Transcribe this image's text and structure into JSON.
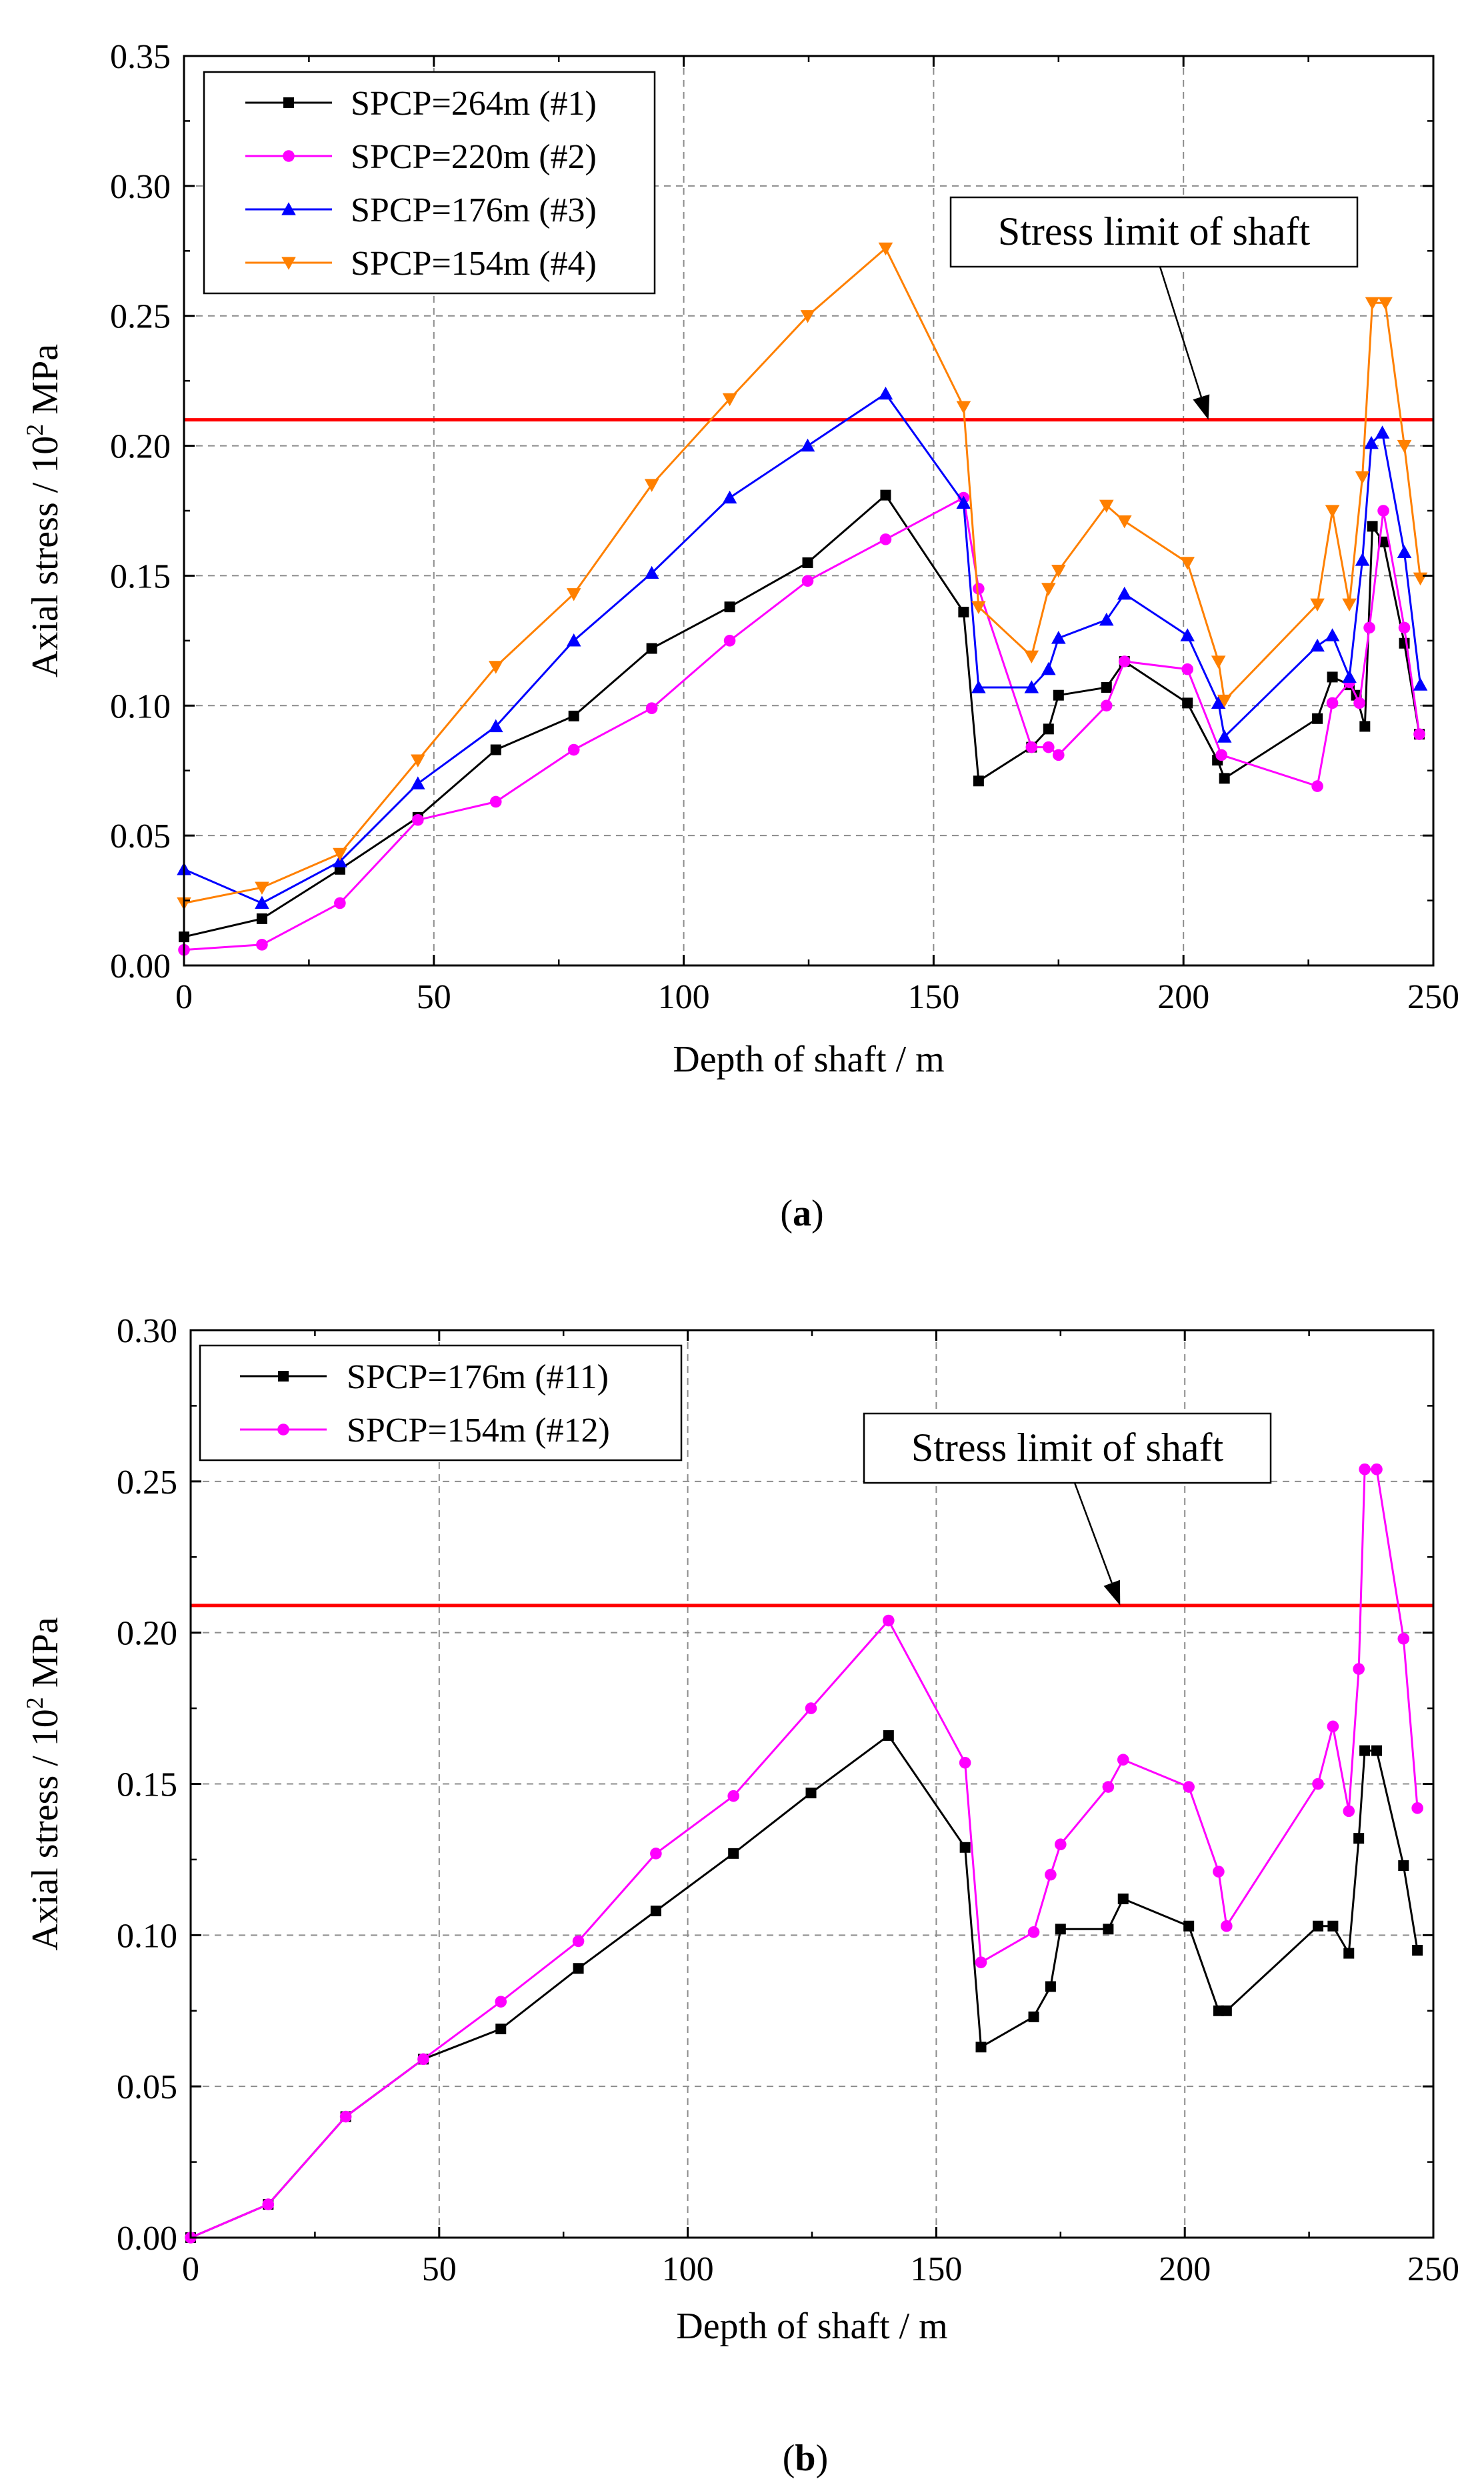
{
  "chart_data": [
    {
      "type": "line",
      "id": "a",
      "caption": "(a)",
      "caption_parts": [
        "(",
        "a",
        ")"
      ],
      "xlabel": "Depth of shaft / m",
      "ylabel_parts": [
        "Axial stress / 10",
        "2",
        " MPa"
      ],
      "xlim": [
        0,
        250
      ],
      "ylim": [
        0,
        0.35
      ],
      "xticks": [
        0,
        50,
        100,
        150,
        200,
        250
      ],
      "yticks": [
        0.0,
        0.05,
        0.1,
        0.15,
        0.2,
        0.25,
        0.3,
        0.35
      ],
      "ytick_labels": [
        "0.00",
        "0.05",
        "0.10",
        "0.15",
        "0.20",
        "0.25",
        "0.30",
        "0.35"
      ],
      "grid": true,
      "legend_position": "top-left",
      "limit_line": {
        "value": 0.21,
        "color": "#ff0000"
      },
      "annotation": {
        "text": "Stress limit of shaft",
        "points_to": [
          205,
          0.21
        ]
      },
      "series": [
        {
          "name": "SPCP=264m (#1)",
          "color": "#000000",
          "marker": "square",
          "x": [
            0,
            15.6,
            31.2,
            46.8,
            62.4,
            78,
            93.6,
            109.2,
            124.8,
            140.4,
            156,
            159,
            169.6,
            173,
            175,
            184.6,
            188.2,
            200.8,
            206.8,
            208.2,
            226.8,
            229.8,
            233.2,
            234.6,
            236.3,
            237.8,
            240,
            244.2,
            247.2
          ],
          "y": [
            0.011,
            0.018,
            0.037,
            0.057,
            0.083,
            0.096,
            0.122,
            0.138,
            0.155,
            0.181,
            0.136,
            0.071,
            0.084,
            0.091,
            0.104,
            0.107,
            0.117,
            0.101,
            0.079,
            0.072,
            0.095,
            0.111,
            0.108,
            0.104,
            0.092,
            0.169,
            0.163,
            0.124,
            0.089
          ]
        },
        {
          "name": "SPCP=220m (#2)",
          "color": "#ff00ff",
          "marker": "circle",
          "x": [
            0,
            15.6,
            31.2,
            46.8,
            62.4,
            78,
            93.6,
            109.2,
            124.8,
            140.4,
            156,
            159,
            169.6,
            173,
            175,
            184.6,
            188.2,
            200.8,
            207.6,
            226.8,
            229.8,
            233.2,
            235.2,
            237.2,
            240,
            244.2,
            247.2
          ],
          "y": [
            0.006,
            0.008,
            0.024,
            0.056,
            0.063,
            0.083,
            0.099,
            0.125,
            0.148,
            0.164,
            0.18,
            0.145,
            0.084,
            0.084,
            0.081,
            0.1,
            0.117,
            0.114,
            0.081,
            0.069,
            0.101,
            0.109,
            0.101,
            0.13,
            0.175,
            0.13,
            0.089
          ]
        },
        {
          "name": "SPCP=176m (#3)",
          "color": "#0000ff",
          "marker": "triangle-up",
          "x": [
            0,
            15.6,
            31.2,
            46.8,
            62.4,
            78,
            93.6,
            109.2,
            124.8,
            140.4,
            156,
            159,
            169.6,
            173,
            175,
            184.6,
            188.2,
            200.8,
            207,
            208.2,
            226.8,
            229.8,
            233.2,
            235.8,
            237.6,
            239.8,
            244.2,
            247.4
          ],
          "y": [
            0.037,
            0.024,
            0.04,
            0.07,
            0.092,
            0.125,
            0.151,
            0.18,
            0.2,
            0.22,
            0.178,
            0.107,
            0.107,
            0.114,
            0.126,
            0.133,
            0.143,
            0.127,
            0.101,
            0.088,
            0.123,
            0.127,
            0.111,
            0.156,
            0.201,
            0.205,
            0.159,
            0.108
          ]
        },
        {
          "name": "SPCP=154m (#4)",
          "color": "#ff8000",
          "marker": "triangle-down",
          "x": [
            0,
            15.6,
            31.2,
            46.8,
            62.4,
            78,
            93.6,
            109.2,
            124.8,
            140.4,
            156,
            159,
            169.6,
            173,
            175,
            184.6,
            188.2,
            200.8,
            207,
            208.2,
            226.8,
            229.8,
            233.2,
            235.8,
            237.8,
            240.4,
            244.2,
            247.4
          ],
          "y": [
            0.024,
            0.03,
            0.043,
            0.079,
            0.115,
            0.143,
            0.185,
            0.218,
            0.25,
            0.276,
            0.215,
            0.138,
            0.119,
            0.145,
            0.152,
            0.177,
            0.171,
            0.155,
            0.117,
            0.102,
            0.139,
            0.175,
            0.139,
            0.188,
            0.255,
            0.255,
            0.2,
            0.149
          ]
        }
      ]
    },
    {
      "type": "line",
      "id": "b",
      "caption": "(b)",
      "caption_parts": [
        "(",
        "b",
        ")"
      ],
      "xlabel": "Depth of shaft / m",
      "ylabel_parts": [
        "Axial stress / 10",
        "2",
        " MPa"
      ],
      "xlim": [
        0,
        250
      ],
      "ylim": [
        0,
        0.3
      ],
      "xticks": [
        0,
        50,
        100,
        150,
        200,
        250
      ],
      "yticks": [
        0.0,
        0.05,
        0.1,
        0.15,
        0.2,
        0.25,
        0.3
      ],
      "ytick_labels": [
        "0.00",
        "0.05",
        "0.10",
        "0.15",
        "0.20",
        "0.25",
        "0.30"
      ],
      "grid": true,
      "legend_position": "top-left",
      "limit_line": {
        "value": 0.209,
        "color": "#ff0000"
      },
      "annotation": {
        "text": "Stress limit of shaft",
        "points_to": [
          187,
          0.209
        ]
      },
      "series": [
        {
          "name": "SPCP=176m (#11)",
          "color": "#000000",
          "marker": "square",
          "x": [
            0,
            15.6,
            31.2,
            46.8,
            62.4,
            78,
            93.6,
            109.2,
            124.8,
            140.4,
            155.8,
            159,
            169.6,
            173,
            175,
            184.6,
            187.6,
            200.8,
            206.8,
            208.4,
            226.8,
            229.8,
            233,
            235,
            236.2,
            238.6,
            244,
            246.8
          ],
          "y": [
            0.0,
            0.011,
            0.04,
            0.059,
            0.069,
            0.089,
            0.108,
            0.127,
            0.147,
            0.166,
            0.129,
            0.063,
            0.073,
            0.083,
            0.102,
            0.102,
            0.112,
            0.103,
            0.075,
            0.075,
            0.103,
            0.103,
            0.094,
            0.132,
            0.161,
            0.161,
            0.123,
            0.095
          ]
        },
        {
          "name": "SPCP=154m (#12)",
          "color": "#ff00ff",
          "marker": "circle",
          "x": [
            0,
            15.6,
            31.2,
            46.8,
            62.4,
            78,
            93.6,
            109.2,
            124.8,
            140.4,
            155.8,
            159,
            169.6,
            173,
            175,
            184.6,
            187.6,
            200.8,
            206.8,
            208.4,
            226.8,
            229.8,
            233,
            235,
            236.2,
            238.6,
            244,
            246.8
          ],
          "y": [
            0.0,
            0.011,
            0.04,
            0.059,
            0.078,
            0.098,
            0.127,
            0.146,
            0.175,
            0.204,
            0.157,
            0.091,
            0.101,
            0.12,
            0.13,
            0.149,
            0.158,
            0.149,
            0.121,
            0.103,
            0.15,
            0.169,
            0.141,
            0.188,
            0.254,
            0.254,
            0.198,
            0.142
          ]
        }
      ]
    }
  ]
}
